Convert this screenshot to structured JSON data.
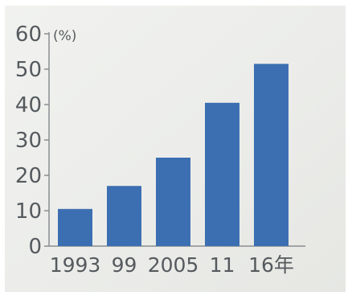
{
  "chart_data": {
    "type": "bar",
    "categories": [
      "1993",
      "99",
      "2005",
      "11",
      "16年"
    ],
    "values": [
      10.5,
      17,
      25,
      40.5,
      51.5
    ],
    "ylabel": "(%)",
    "ylim": [
      0,
      60
    ],
    "yticks": [
      "0",
      "10",
      "20",
      "30",
      "40",
      "50",
      "60"
    ],
    "bar_color": "#3c6fb2",
    "grid": false,
    "legend": "none"
  }
}
